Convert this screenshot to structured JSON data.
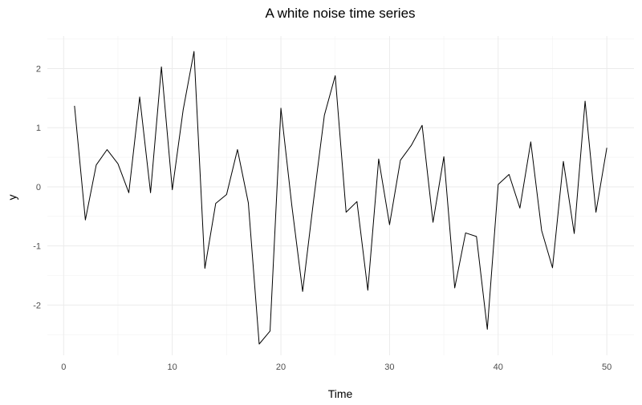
{
  "chart_data": {
    "type": "line",
    "title": "A white noise time series",
    "xlabel": "Time",
    "ylabel": "y",
    "xlim": [
      -1.5,
      52.5
    ],
    "ylim": [
      -2.85,
      2.55
    ],
    "x_ticks": [
      0,
      10,
      20,
      30,
      40,
      50
    ],
    "y_ticks": [
      -2,
      -1,
      0,
      1,
      2
    ],
    "grid": true,
    "series": [
      {
        "color": "#000000",
        "x": [
          1,
          2,
          3,
          4,
          5,
          6,
          7,
          8,
          9,
          10,
          11,
          12,
          13,
          14,
          15,
          16,
          17,
          18,
          19,
          20,
          21,
          22,
          23,
          24,
          25,
          26,
          27,
          28,
          29,
          30,
          31,
          32,
          33,
          34,
          35,
          36,
          37,
          38,
          39,
          40,
          41,
          42,
          43,
          44,
          45,
          46,
          47,
          48,
          49,
          50
        ],
        "y": [
          1.37,
          -0.56,
          0.37,
          0.63,
          0.39,
          -0.1,
          1.52,
          -0.1,
          2.03,
          -0.05,
          1.3,
          2.29,
          -1.38,
          -0.28,
          -0.13,
          0.63,
          -0.27,
          -2.66,
          -2.44,
          1.33,
          -0.31,
          -1.77,
          -0.24,
          1.21,
          1.88,
          -0.43,
          -0.25,
          -1.75,
          0.47,
          -0.64,
          0.45,
          0.7,
          1.04,
          -0.6,
          0.51,
          -1.71,
          -0.78,
          -0.84,
          -2.41,
          0.04,
          0.21,
          -0.36,
          0.76,
          -0.74,
          -1.37,
          0.43,
          -0.79,
          1.45,
          -0.43,
          0.66
        ]
      }
    ]
  }
}
